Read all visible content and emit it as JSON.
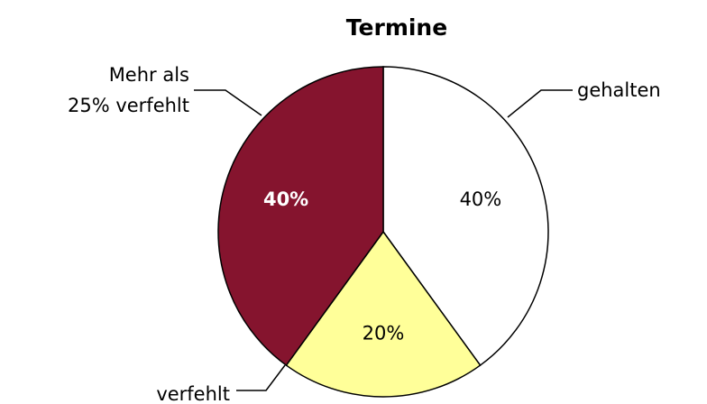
{
  "chart_data": {
    "type": "pie",
    "title": "Termine",
    "categories": [
      "gehalten",
      "verfehlt",
      "Mehr als 25% verfehlt"
    ],
    "values": [
      40,
      20,
      40
    ],
    "value_labels": [
      "40%",
      "20%",
      "40%"
    ],
    "colors": [
      "#ffffff",
      "#ffff99",
      "#85142e"
    ],
    "start_angle": 0,
    "direction": "clockwise"
  }
}
